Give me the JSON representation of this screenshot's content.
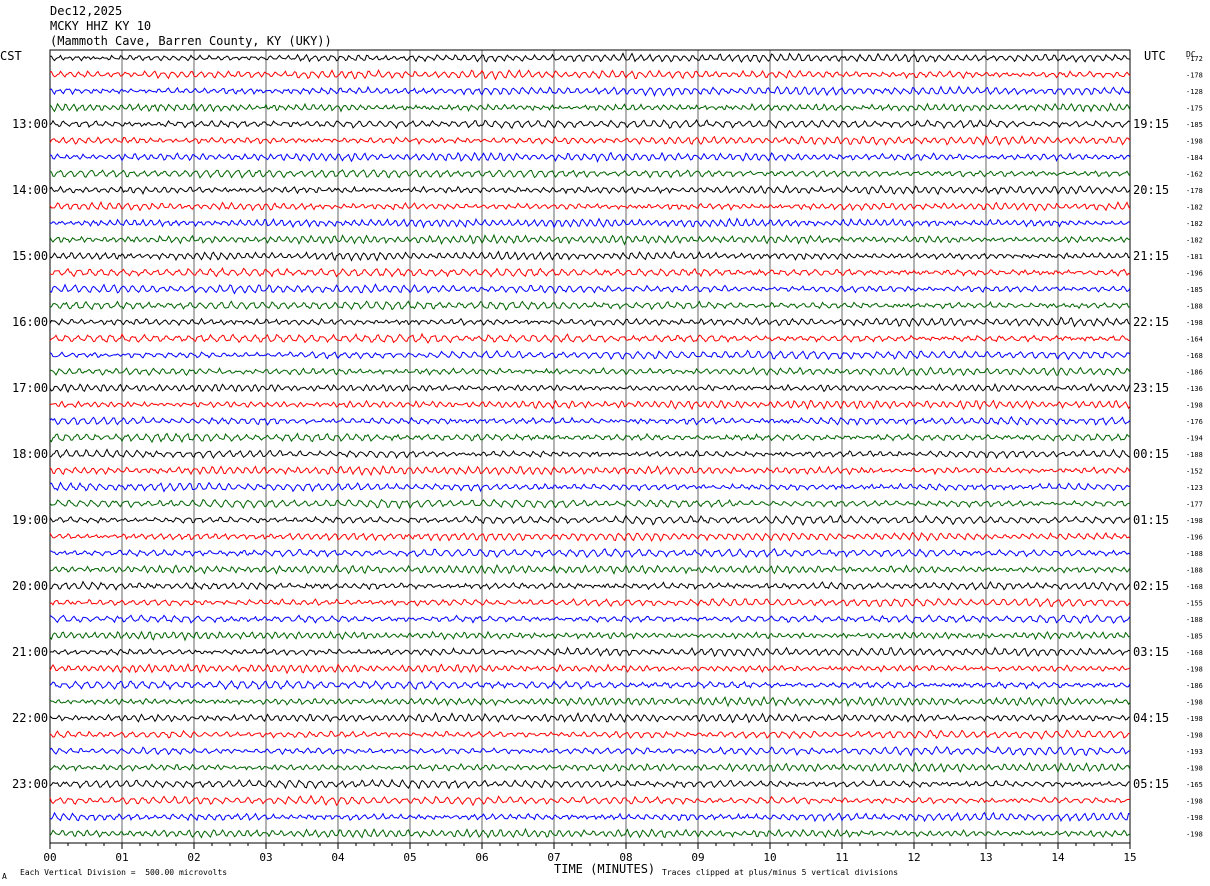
{
  "header": {
    "date": "Dec12,2025",
    "station": "MCKY HHZ KY 10",
    "location": "(Mammoth Cave, Barren County, KY (UKY))"
  },
  "left_timezone": "CST",
  "right_timezone": "UTC",
  "dc_label": "DC",
  "footer": {
    "scale_note": "Each Vertical Division =  500.00 microvolts",
    "clip_note": "Traces clipped at plus/minus 5 vertical divisions",
    "corner_mark": "A"
  },
  "colors": {
    "trace_cycle": [
      "#000000",
      "#ff0000",
      "#0000ff",
      "#006400"
    ],
    "grid": "#000000"
  },
  "chart_data": {
    "type": "line",
    "title": "MCKY HHZ KY 10",
    "xlabel": "TIME (MINUTES)",
    "ylabel": "",
    "xlim": [
      0,
      15
    ],
    "x_ticks": [
      "00",
      "01",
      "02",
      "03",
      "04",
      "05",
      "06",
      "07",
      "08",
      "09",
      "10",
      "11",
      "12",
      "13",
      "14",
      "15"
    ],
    "left_hour_labels": [
      "13:00",
      "14:00",
      "15:00",
      "16:00",
      "17:00",
      "18:00",
      "19:00",
      "20:00",
      "21:00",
      "22:00",
      "23:00"
    ],
    "right_hour_labels": [
      "19:15",
      "20:15",
      "21:15",
      "22:15",
      "23:15",
      "00:15",
      "01:15",
      "02:15",
      "03:15",
      "04:15",
      "05:15"
    ],
    "trace_count": 48,
    "dc_offsets": [
      "-172",
      "-178",
      "-128",
      "-175",
      "-185",
      "-198",
      "-184",
      "-162",
      "-178",
      "-182",
      "-182",
      "-182",
      "-181",
      "-196",
      "-185",
      "-188",
      "-198",
      "-164",
      "-168",
      "-186",
      "-136",
      "-198",
      "-176",
      "-194",
      "-188",
      "-152",
      "-123",
      "-177",
      "-198",
      "-196",
      "-188",
      "-188",
      "-168",
      "-155",
      "-188",
      "-185",
      "-168",
      "-198",
      "-186",
      "-198",
      "-198",
      "-198",
      "-193",
      "-198",
      "-165",
      "-198",
      "-198",
      "-198"
    ]
  }
}
